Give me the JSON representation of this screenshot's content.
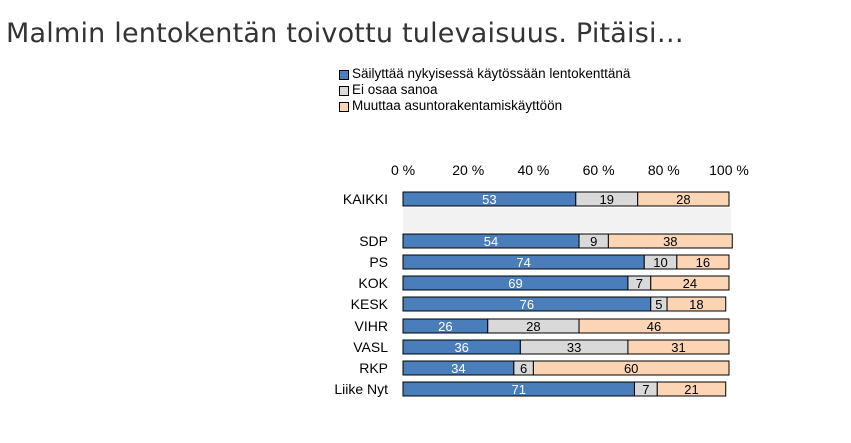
{
  "title": "Malmin lentokentän toivottu tulevaisuus. Pitäisi…",
  "colors": {
    "series": [
      "#4a7ebb",
      "#d9d9d9",
      "#fcd5b5"
    ],
    "highlight_band": "#f2f2f2",
    "bar_stroke": "#000000"
  },
  "chart_data": {
    "type": "bar",
    "orientation": "horizontal",
    "stacked": true,
    "stack_mode": "percent",
    "title": "Malmin lentokentän toivottu tulevaisuus. Pitäisi…",
    "xlim": [
      0,
      100
    ],
    "x_ticks": [
      "0 %",
      "20 %",
      "40 %",
      "60 %",
      "80 %",
      "100 %"
    ],
    "x_tick_values": [
      0,
      20,
      40,
      60,
      80,
      100
    ],
    "x_axis_position": "top",
    "legend_position": "top",
    "grid": false,
    "categories": [
      "KAIKKI",
      "SDP",
      "PS",
      "KOK",
      "KESK",
      "VIHR",
      "VASL",
      "RKP",
      "Liike Nyt"
    ],
    "series": [
      {
        "name": "Säilyttää nykyisessä käytössään lentokenttänä",
        "values": [
          53,
          54,
          74,
          69,
          76,
          26,
          36,
          34,
          71
        ]
      },
      {
        "name": "Ei osaa sanoa",
        "values": [
          19,
          9,
          10,
          7,
          5,
          28,
          33,
          6,
          7
        ]
      },
      {
        "name": "Muuttaa asuntorakentamiskäyttöön",
        "values": [
          28,
          38,
          16,
          24,
          18,
          46,
          31,
          60,
          21
        ]
      }
    ],
    "data_labels": [
      [
        "53",
        "54",
        "74",
        "69",
        "76",
        "26",
        "36",
        "34",
        "71"
      ],
      [
        "19",
        "9",
        "10",
        "7",
        "5",
        "28",
        "33",
        "6",
        "7"
      ],
      [
        "28",
        "38",
        "16",
        "24",
        "18",
        "46",
        "31",
        "60",
        "21"
      ]
    ],
    "data_label_colors": [
      "#ffffff",
      "#000000",
      "#000000"
    ]
  }
}
